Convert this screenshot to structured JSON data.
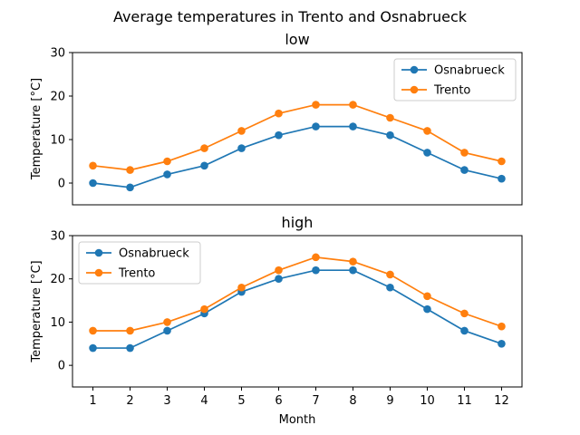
{
  "figure": {
    "title": "Average temperatures in Trento and Osnabrueck"
  },
  "chart_data": [
    {
      "type": "line",
      "title": "low",
      "xlabel": "",
      "ylabel": "Temperature [°C]",
      "ylim": [
        -5,
        30
      ],
      "yticks": [
        0,
        10,
        20,
        30
      ],
      "x": [
        1,
        2,
        3,
        4,
        5,
        6,
        7,
        8,
        9,
        10,
        11,
        12
      ],
      "xticks_visible": false,
      "legend_position": "top-right",
      "grid": false,
      "series": [
        {
          "name": "Osnabrueck",
          "color": "#1f77b4",
          "marker": "circle",
          "values": [
            0,
            -1,
            2,
            4,
            8,
            11,
            13,
            13,
            11,
            7,
            3,
            1
          ]
        },
        {
          "name": "Trento",
          "color": "#ff7f0e",
          "marker": "circle",
          "values": [
            4,
            3,
            5,
            8,
            12,
            16,
            18,
            18,
            15,
            12,
            7,
            5
          ]
        }
      ]
    },
    {
      "type": "line",
      "title": "high",
      "xlabel": "Month",
      "ylabel": "Temperature [°C]",
      "ylim": [
        -5,
        30
      ],
      "yticks": [
        0,
        10,
        20,
        30
      ],
      "x": [
        1,
        2,
        3,
        4,
        5,
        6,
        7,
        8,
        9,
        10,
        11,
        12
      ],
      "xticks_visible": true,
      "legend_position": "top-left",
      "grid": false,
      "series": [
        {
          "name": "Osnabrueck",
          "color": "#1f77b4",
          "marker": "circle",
          "values": [
            4,
            4,
            8,
            12,
            17,
            20,
            22,
            22,
            18,
            13,
            8,
            5
          ]
        },
        {
          "name": "Trento",
          "color": "#ff7f0e",
          "marker": "circle",
          "values": [
            8,
            8,
            10,
            13,
            18,
            22,
            25,
            24,
            21,
            16,
            12,
            9
          ]
        }
      ]
    }
  ]
}
